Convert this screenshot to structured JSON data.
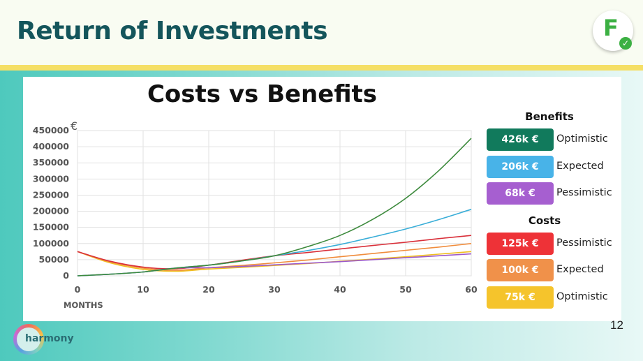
{
  "header": {
    "title": "Return of Investments",
    "logo_letter": "F",
    "logo_check": "✓"
  },
  "footer": {
    "brand_text": "harmony",
    "page_number": "12"
  },
  "chart_data": {
    "type": "line",
    "title": "Costs vs Benefits",
    "ylabel": "€",
    "xlabel": "MONTHS",
    "xlim": [
      0,
      60
    ],
    "ylim": [
      0,
      450000
    ],
    "x_ticks": [
      0,
      10,
      20,
      30,
      40,
      50,
      60
    ],
    "y_ticks": [
      0,
      50000,
      100000,
      150000,
      200000,
      250000,
      300000,
      350000,
      400000,
      450000
    ],
    "grid": true,
    "legend_position": "right",
    "x": [
      0,
      5,
      10,
      15,
      20,
      25,
      30,
      35,
      40,
      45,
      50,
      55,
      60
    ],
    "series": [
      {
        "group": "Benefits",
        "name": "Optimistic",
        "badge": "426k €",
        "color": "#117a5c",
        "line_color": "#3d8a3d",
        "values": [
          0,
          5000,
          12000,
          24000,
          33000,
          46000,
          62000,
          90000,
          125000,
          175000,
          240000,
          325000,
          426000
        ]
      },
      {
        "group": "Benefits",
        "name": "Expected",
        "badge": "206k €",
        "color": "#48b3e8",
        "line_color": "#3aaed8",
        "values": [
          0,
          5000,
          12000,
          24000,
          33000,
          46000,
          62000,
          78000,
          97000,
          120000,
          145000,
          174000,
          206000
        ]
      },
      {
        "group": "Benefits",
        "name": "Pessimistic",
        "badge": "68k €",
        "color": "#a65fd0",
        "line_color": "#9b59c9",
        "values": [
          0,
          5000,
          12000,
          24000,
          25000,
          29000,
          34000,
          39000,
          44000,
          50000,
          56000,
          62000,
          68000
        ]
      },
      {
        "group": "Costs",
        "name": "Pessimistic",
        "badge": "125k €",
        "color": "#ee3237",
        "line_color": "#d9303a",
        "values": [
          75000,
          45000,
          27000,
          22000,
          33000,
          48000,
          62000,
          72000,
          83000,
          94000,
          104000,
          115000,
          125000
        ]
      },
      {
        "group": "Costs",
        "name": "Expected",
        "badge": "100k €",
        "color": "#f0914a",
        "line_color": "#f08c3c",
        "values": [
          75000,
          43000,
          24000,
          17000,
          25000,
          32000,
          40000,
          49000,
          59000,
          69000,
          79000,
          89000,
          100000
        ]
      },
      {
        "group": "Costs",
        "name": "Optimistic",
        "badge": "75k €",
        "color": "#f5c42c",
        "line_color": "#f0be1f",
        "values": [
          75000,
          40000,
          20000,
          14000,
          21000,
          26000,
          32000,
          38000,
          45000,
          52000,
          59000,
          67000,
          75000
        ]
      }
    ],
    "legend": {
      "benefits_heading": "Benefits",
      "costs_heading": "Costs"
    }
  }
}
